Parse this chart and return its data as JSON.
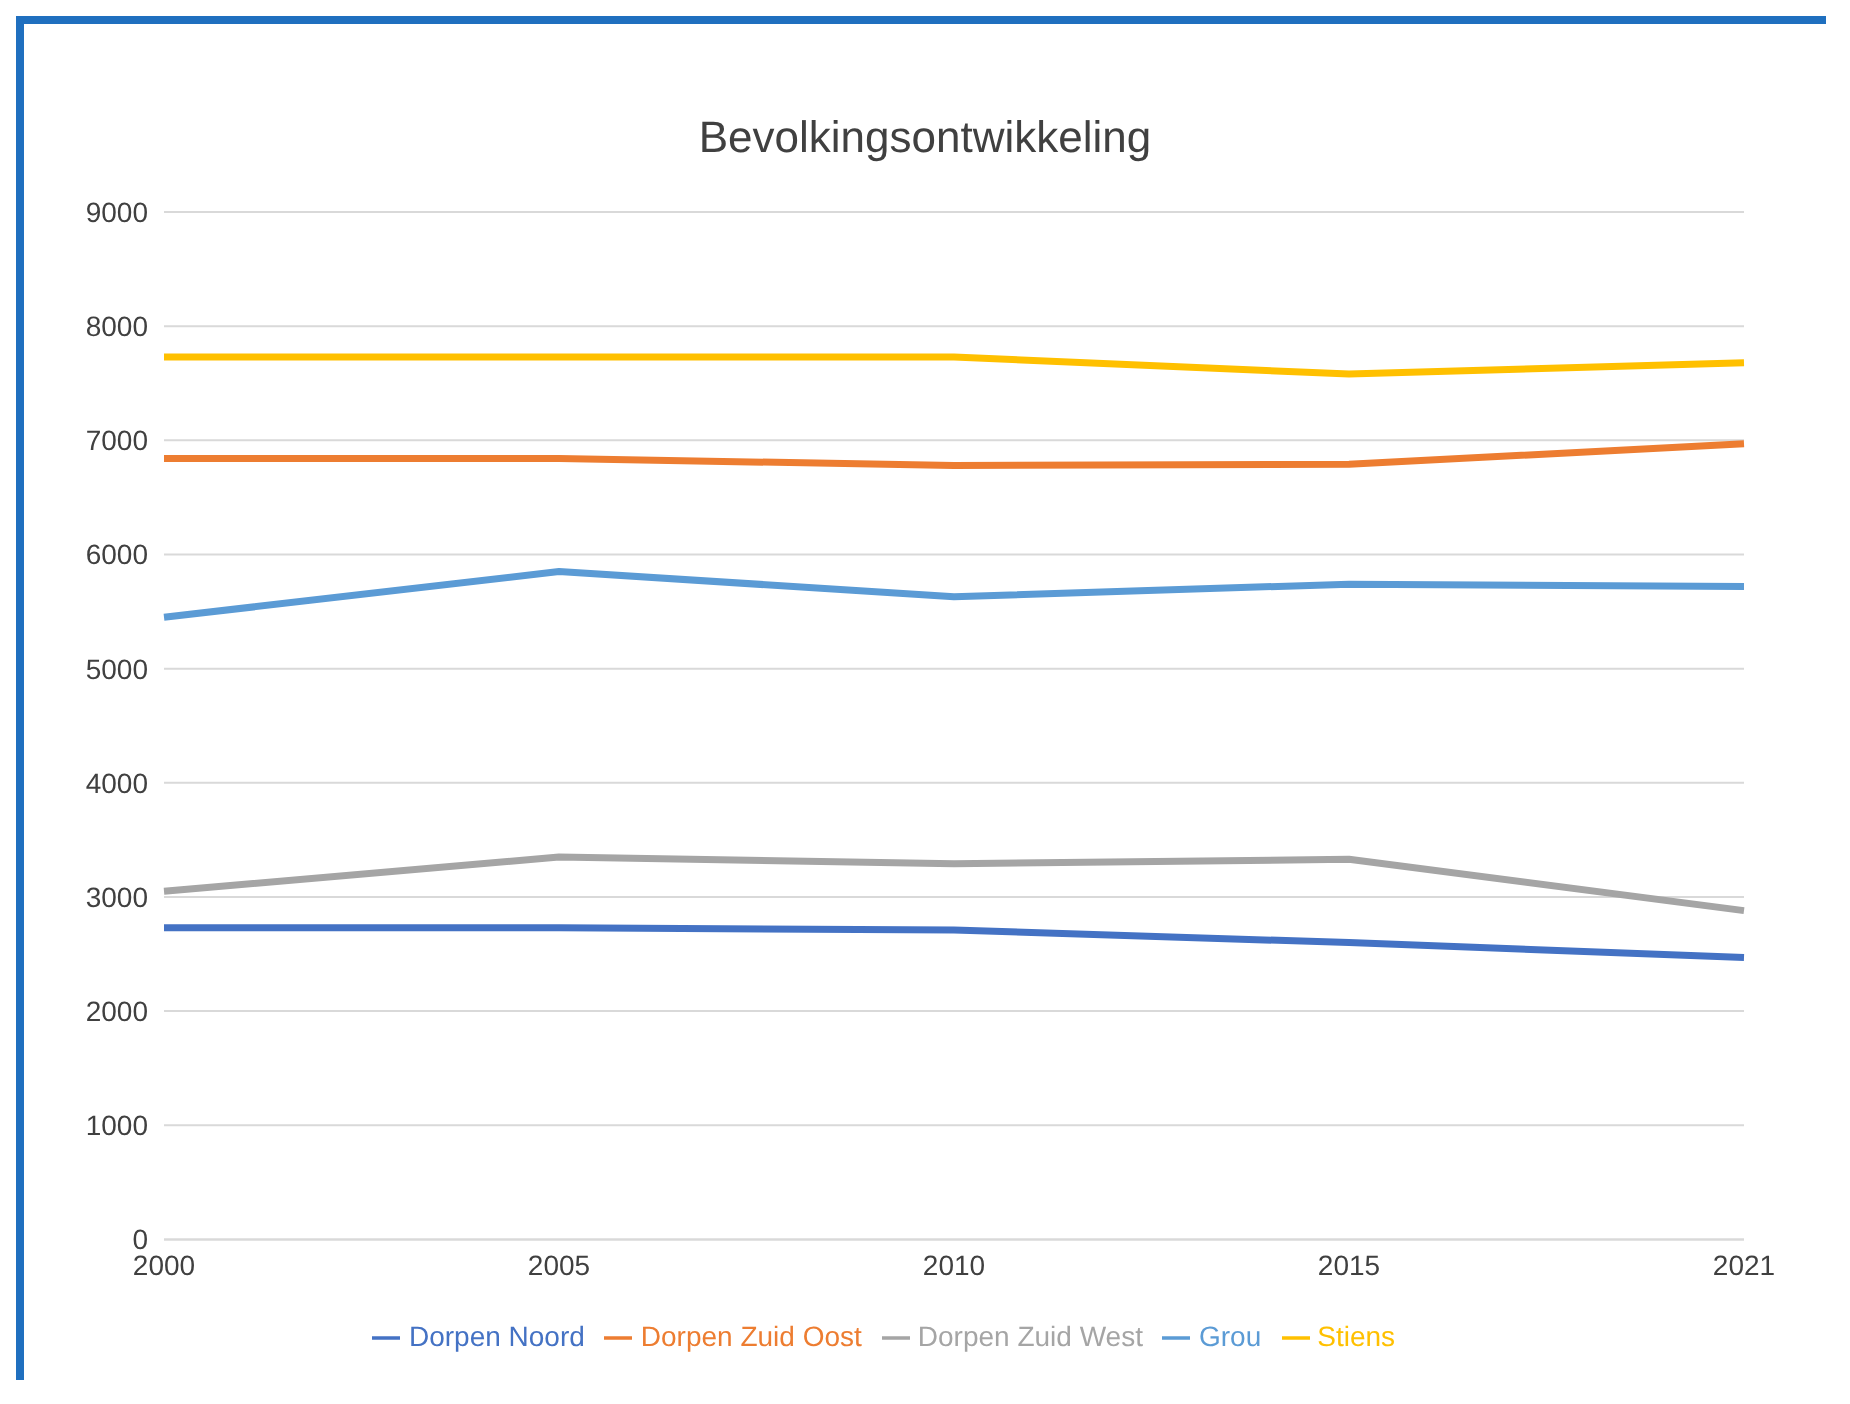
{
  "chart_data": {
    "type": "line",
    "title": "Bevolkingsontwikkeling",
    "categories": [
      "2000",
      "2005",
      "2010",
      "2015",
      "2021"
    ],
    "series": [
      {
        "name": "Dorpen Noord",
        "color": "#4472c4",
        "values": [
          2730,
          2730,
          2710,
          2600,
          2470
        ]
      },
      {
        "name": "Dorpen Zuid Oost",
        "color": "#ed7d31",
        "values": [
          6840,
          6840,
          6780,
          6790,
          6970
        ]
      },
      {
        "name": "Dorpen Zuid West",
        "color": "#a5a5a5",
        "values": [
          3050,
          3350,
          3290,
          3330,
          2880
        ]
      },
      {
        "name": "Stiens",
        "color": "#ffc000",
        "values": [
          7730,
          7730,
          7730,
          7580,
          7680
        ]
      },
      {
        "name": "Grou",
        "color": "#5b9bd5",
        "values": [
          5450,
          5850,
          5630,
          5740,
          5720
        ]
      }
    ],
    "ylim": [
      0,
      9000
    ],
    "yticks": [
      0,
      1000,
      2000,
      3000,
      4000,
      5000,
      6000,
      7000,
      8000,
      9000
    ],
    "grid": "y",
    "legend": "bottom",
    "line_style": "solid"
  }
}
